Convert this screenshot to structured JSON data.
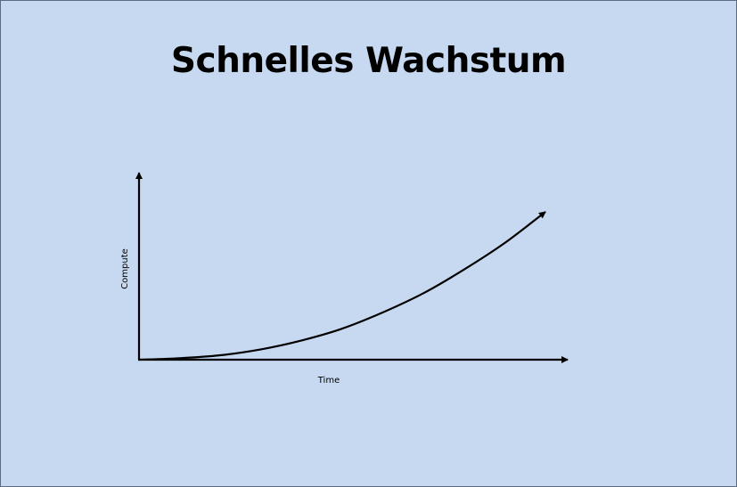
{
  "slide": {
    "title": "Schnelles Wachstum",
    "background_color": "#c7d9f1"
  },
  "chart_data": {
    "type": "line",
    "title": "Schnelles Wachstum",
    "xlabel": "Time",
    "ylabel": "Compute",
    "grid": false,
    "legend": "none",
    "x_ticks": [],
    "y_ticks": [],
    "series": [
      {
        "shape": "exponential",
        "x": [
          0,
          0.1,
          0.2,
          0.3,
          0.4,
          0.5,
          0.6,
          0.7,
          0.8,
          0.9,
          1.0
        ],
        "y": [
          0,
          0.01,
          0.03,
          0.07,
          0.13,
          0.21,
          0.32,
          0.45,
          0.61,
          0.79,
          1.0
        ],
        "arrowhead": true
      }
    ],
    "xlim": [
      0,
      1.0
    ],
    "ylim": [
      0,
      1.0
    ],
    "line_color": "#000000"
  }
}
